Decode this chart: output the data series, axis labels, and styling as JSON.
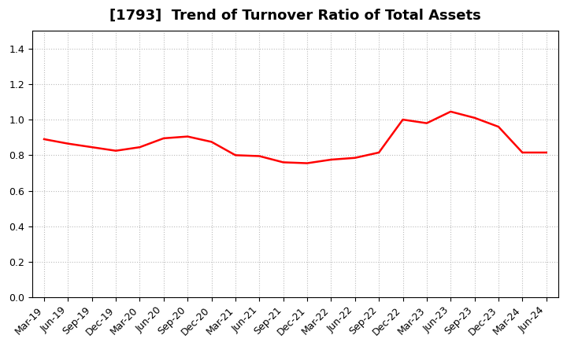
{
  "title": "[1793]  Trend of Turnover Ratio of Total Assets",
  "x_labels": [
    "Mar-19",
    "Jun-19",
    "Sep-19",
    "Dec-19",
    "Mar-20",
    "Jun-20",
    "Sep-20",
    "Dec-20",
    "Mar-21",
    "Jun-21",
    "Sep-21",
    "Dec-21",
    "Mar-22",
    "Jun-22",
    "Sep-22",
    "Dec-22",
    "Mar-23",
    "Jun-23",
    "Sep-23",
    "Dec-23",
    "Mar-24",
    "Jun-24"
  ],
  "values": [
    0.89,
    0.865,
    0.845,
    0.825,
    0.845,
    0.895,
    0.905,
    0.875,
    0.8,
    0.795,
    0.76,
    0.755,
    0.775,
    0.785,
    0.815,
    1.0,
    0.98,
    1.045,
    1.01,
    0.96,
    0.815,
    0.815
  ],
  "line_color": "#ff0000",
  "line_width": 1.8,
  "ylim": [
    0.0,
    1.5
  ],
  "yticks": [
    0.0,
    0.2,
    0.4,
    0.6,
    0.8,
    1.0,
    1.2,
    1.4
  ],
  "grid_color": "#bbbbbb",
  "grid_style": "dotted",
  "background_color": "#ffffff",
  "title_fontsize": 13,
  "tick_fontsize": 9
}
